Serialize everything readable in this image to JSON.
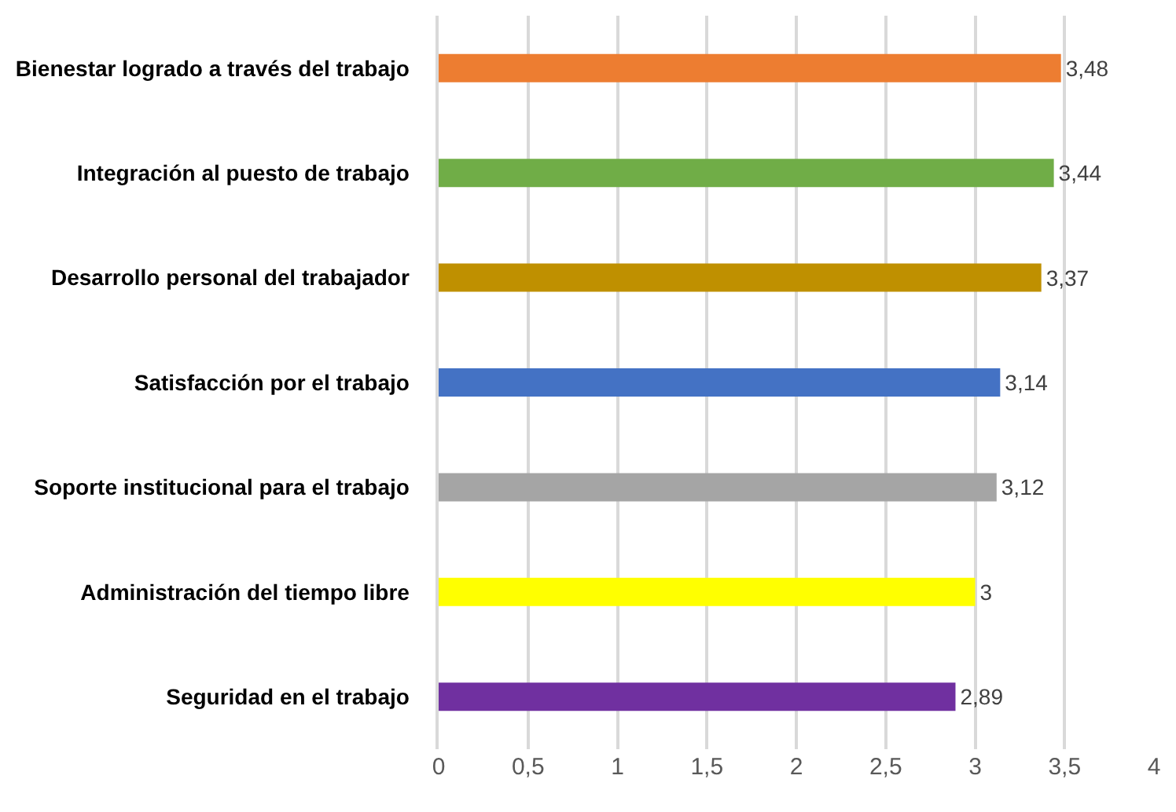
{
  "chart_data": {
    "type": "bar",
    "orientation": "horizontal",
    "categories": [
      "Bienestar logrado a través del trabajo",
      "Integración al puesto de trabajo",
      "Desarrollo personal del trabajador",
      "Satisfacción por el trabajo",
      "Soporte institucional para el trabajo",
      "Administración del tiempo libre",
      "Seguridad en el trabajo"
    ],
    "values": [
      3.48,
      3.44,
      3.37,
      3.14,
      3.12,
      3,
      2.89
    ],
    "value_labels": [
      "3,48",
      "3,44",
      "3,37",
      "3,14",
      "3,12",
      "3",
      "2,89"
    ],
    "colors": [
      "#ed7d31",
      "#70ad47",
      "#bf9000",
      "#4472c4",
      "#a5a5a5",
      "#ffff00",
      "#7030a0"
    ],
    "xlim": [
      0,
      4
    ],
    "xticks": [
      0,
      {
        "value": 0.5,
        "label": "0,5"
      },
      1,
      {
        "value": 1.5,
        "label": "1,5"
      },
      2,
      {
        "value": 2.5,
        "label": "2,5"
      },
      3,
      {
        "value": 3.5,
        "label": "3,5"
      },
      4
    ],
    "grid": "x",
    "legend": false
  }
}
